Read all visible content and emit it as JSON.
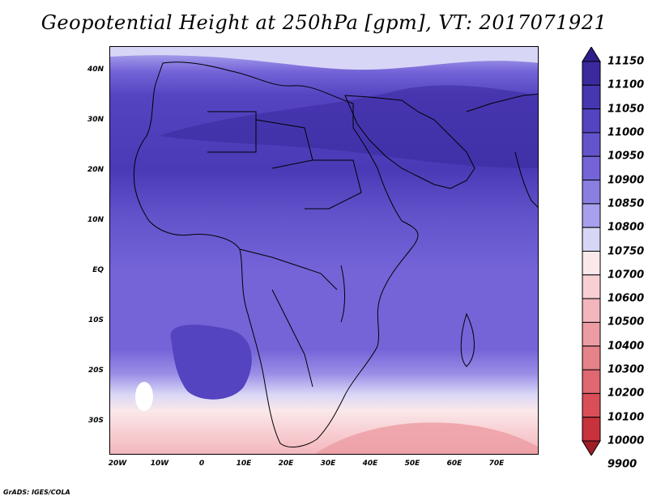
{
  "title": "Geopotential Height at 250hPa [gpm], VT: 2017071921",
  "credit": "GrADS: IGES/COLA",
  "lat_labels": [
    "40N",
    "30N",
    "20N",
    "10N",
    "EQ",
    "10S",
    "20S",
    "30S"
  ],
  "lon_labels": [
    "20W",
    "10W",
    "0",
    "10E",
    "20E",
    "30E",
    "40E",
    "50E",
    "60E",
    "70E"
  ],
  "colorbar": {
    "levels": [
      "11150",
      "11100",
      "11050",
      "11000",
      "10950",
      "10900",
      "10850",
      "10800",
      "10750",
      "10700",
      "10600",
      "10500",
      "10400",
      "10300",
      "10200",
      "10100",
      "10000",
      "9900"
    ],
    "colors": [
      "#2e1e8c",
      "#3a2a9e",
      "#4636b0",
      "#5444c0",
      "#6454cc",
      "#7464d8",
      "#8a7ee0",
      "#a8a0ec",
      "#d8d6f6",
      "#fae8ea",
      "#f8d0d4",
      "#f2b6bc",
      "#ec9ca2",
      "#e6828a",
      "#e06870",
      "#da4e58",
      "#c8323c",
      "#a01e28"
    ]
  },
  "legend_position": "right"
}
